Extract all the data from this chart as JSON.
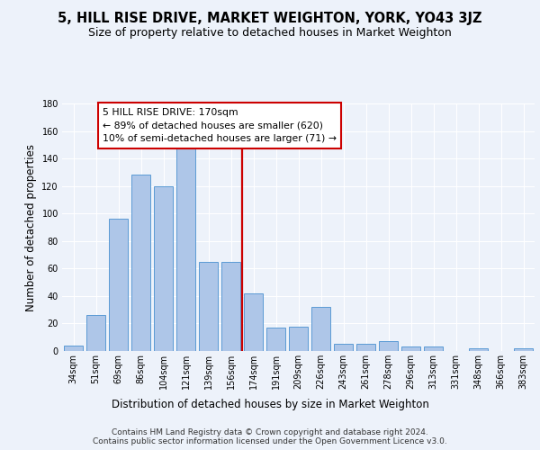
{
  "title": "5, HILL RISE DRIVE, MARKET WEIGHTON, YORK, YO43 3JZ",
  "subtitle": "Size of property relative to detached houses in Market Weighton",
  "xlabel": "Distribution of detached houses by size in Market Weighton",
  "ylabel": "Number of detached properties",
  "footer_line1": "Contains HM Land Registry data © Crown copyright and database right 2024.",
  "footer_line2": "Contains public sector information licensed under the Open Government Licence v3.0.",
  "categories": [
    "34sqm",
    "51sqm",
    "69sqm",
    "86sqm",
    "104sqm",
    "121sqm",
    "139sqm",
    "156sqm",
    "174sqm",
    "191sqm",
    "209sqm",
    "226sqm",
    "243sqm",
    "261sqm",
    "278sqm",
    "296sqm",
    "313sqm",
    "331sqm",
    "348sqm",
    "366sqm",
    "383sqm"
  ],
  "values": [
    4,
    26,
    96,
    128,
    120,
    150,
    65,
    65,
    42,
    17,
    18,
    32,
    5,
    5,
    7,
    3,
    3,
    0,
    2,
    0,
    2
  ],
  "bar_color": "#aec6e8",
  "bar_edge_color": "#5b9bd5",
  "annotation_line1": "5 HILL RISE DRIVE: 170sqm",
  "annotation_line2": "← 89% of detached houses are smaller (620)",
  "annotation_line3": "10% of semi-detached houses are larger (71) →",
  "vline_color": "#cc0000",
  "box_edge_color": "#cc0000",
  "ylim": [
    0,
    180
  ],
  "yticks": [
    0,
    20,
    40,
    60,
    80,
    100,
    120,
    140,
    160,
    180
  ],
  "background_color": "#edf2fa",
  "grid_color": "#ffffff",
  "title_fontsize": 10.5,
  "subtitle_fontsize": 9,
  "ylabel_fontsize": 8.5,
  "xlabel_fontsize": 8.5,
  "tick_fontsize": 7,
  "annot_fontsize": 7.8,
  "footer_fontsize": 6.5
}
